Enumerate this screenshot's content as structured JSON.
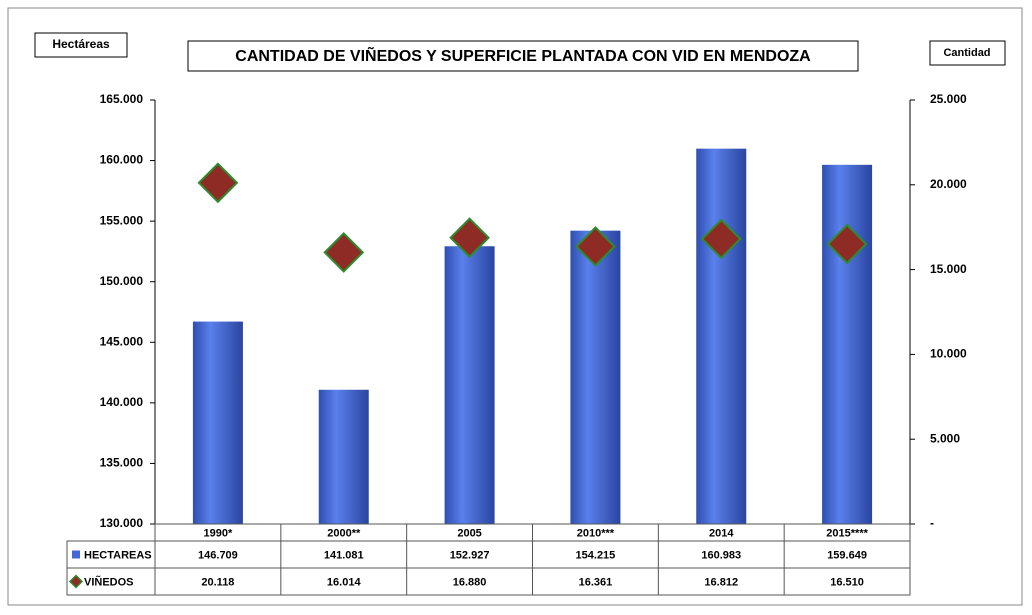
{
  "chart_data": {
    "type": "bar_diamond",
    "title": "CANTIDAD DE VIÑEDOS Y SUPERFICIE PLANTADA CON VID EN MENDOZA",
    "y_label": "Hectáreas",
    "y2_label": "Cantidad",
    "categories": [
      "1990*",
      "2000**",
      "2005",
      "2010***",
      "2014",
      "2015****"
    ],
    "series": [
      {
        "name": "HECTAREAS",
        "color": "#4468d6",
        "values": [
          146709,
          141081,
          152927,
          154215,
          160983,
          159649
        ],
        "value_labels": [
          "146.709",
          "141.081",
          "152.927",
          "154.215",
          "160.983",
          "159.649"
        ]
      },
      {
        "name": "VIÑEDOS",
        "color": "#8e2b25",
        "axis": "y2",
        "values": [
          20118,
          16014,
          16880,
          16361,
          16812,
          16510
        ],
        "value_labels": [
          "20.118",
          "16.014",
          "16.880",
          "16.361",
          "16.812",
          "16.510"
        ]
      }
    ],
    "ylim": [
      130000,
      165000
    ],
    "yticks": [
      {
        "value": 130000,
        "label": "130.000"
      },
      {
        "value": 135000,
        "label": "135.000"
      },
      {
        "value": 140000,
        "label": "140.000"
      },
      {
        "value": 145000,
        "label": "145.000"
      },
      {
        "value": 150000,
        "label": "150.000"
      },
      {
        "value": 155000,
        "label": "155.000"
      },
      {
        "value": 160000,
        "label": "160.000"
      },
      {
        "value": 165000,
        "label": "165.000"
      }
    ],
    "y2lim": [
      0,
      25000
    ],
    "y2ticks": [
      {
        "value": 0,
        "label": "-"
      },
      {
        "value": 5000,
        "label": "5.000"
      },
      {
        "value": 10000,
        "label": "10.000"
      },
      {
        "value": 15000,
        "label": "15.000"
      },
      {
        "value": 20000,
        "label": "20.000"
      },
      {
        "value": 25000,
        "label": "25.000"
      }
    ]
  }
}
